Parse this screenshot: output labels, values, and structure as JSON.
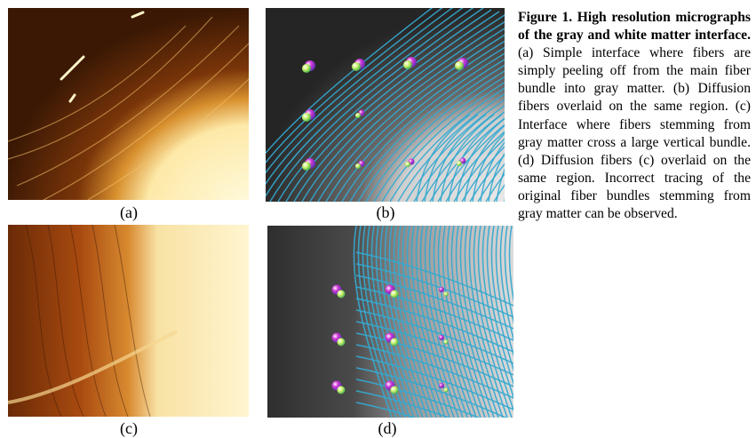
{
  "panels": [
    {
      "id": "a",
      "label": "(a)"
    },
    {
      "id": "b",
      "label": "(b)"
    },
    {
      "id": "c",
      "label": "(c)"
    },
    {
      "id": "d",
      "label": "(d)"
    }
  ],
  "caption": {
    "title": "Figure 1. High resolution micrographs of the gray and white matter interface.",
    "body": "(a) Simple interface where fibers are simply peeling off from the main fiber bundle into gray matter. (b) Diffusion fibers overlaid on the same region. (c) Interface where fibers stemming from gray matter cross a large vertical bundle. (d) Diffusion fibers (c) overlaid on the same region. Incorrect tracing of the original fiber bundles stemming from gray matter can be observed."
  },
  "colors": {
    "tract": "#35a9d0",
    "amber_dark": "#3a1804",
    "amber_bright": "#fff1bd",
    "glyph_magenta": "#d23ad8",
    "glyph_green": "#7df05a"
  }
}
